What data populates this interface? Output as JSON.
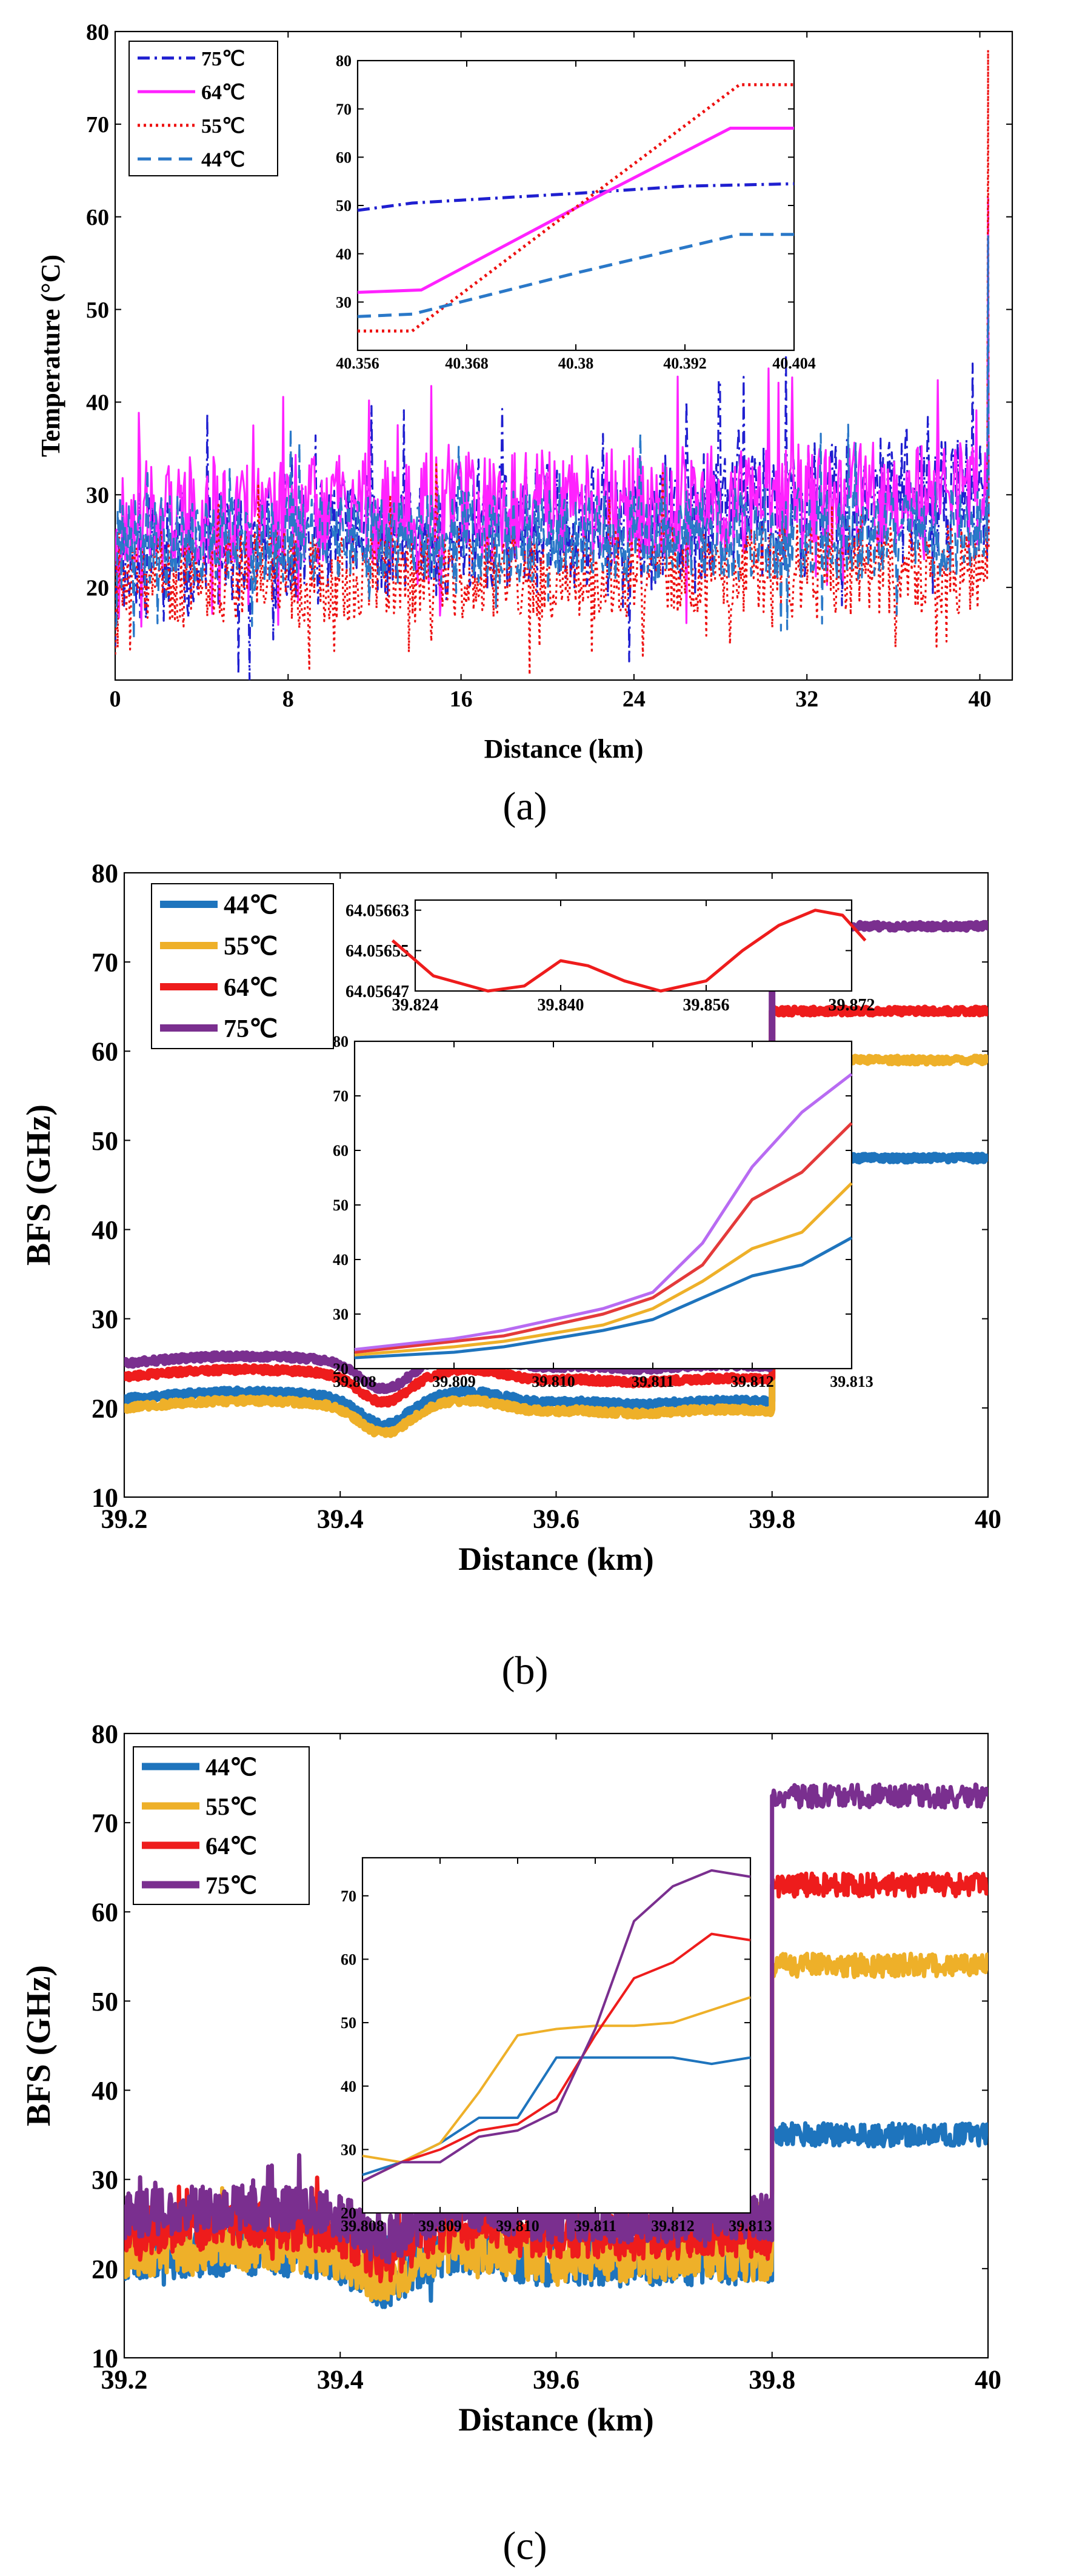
{
  "figure": {
    "panel_labels": [
      "(a)",
      "(b)",
      "(c)"
    ]
  },
  "chart_data": [
    {
      "type": "line",
      "panel": "a",
      "title": "",
      "xlabel": "Distance (km)",
      "ylabel": "Temperature (°C)",
      "xlim": [
        0,
        41.5
      ],
      "ylim": [
        10,
        80
      ],
      "xticks": [
        0,
        8,
        16,
        24,
        32,
        40
      ],
      "yticks": [
        20,
        30,
        40,
        50,
        60,
        70,
        80
      ],
      "legend_location": "top-left",
      "series": [
        {
          "name": "75℃",
          "color": "#1f1fd0",
          "dash": "dashdot",
          "base": 23,
          "amp": 7,
          "trend": 7,
          "seed": 11,
          "spike": 62
        },
        {
          "name": "64℃",
          "color": "#ff22ff",
          "dash": "solid",
          "base": 28,
          "amp": 6,
          "trend": 2,
          "seed": 23,
          "spike": 62
        },
        {
          "name": "55℃",
          "color": "#ee1111",
          "dash": "dotted",
          "base": 21,
          "amp": 5,
          "trend": 1,
          "seed": 37,
          "spike": 78
        },
        {
          "name": "44℃",
          "color": "#2a78c8",
          "dash": "dashed",
          "base": 25,
          "amp": 5,
          "trend": 1,
          "seed": 41,
          "spike": 58
        }
      ],
      "inset": {
        "xlim": [
          40.356,
          40.404
        ],
        "ylim": [
          20,
          80
        ],
        "xticks": [
          "40.356",
          "40.368",
          "40.38",
          "40.392",
          "40.404"
        ],
        "yticks": [
          30,
          40,
          50,
          60,
          70,
          80
        ],
        "series": [
          {
            "name": "75℃",
            "x": [
              40.356,
              40.362,
              40.38,
              40.392,
              40.404
            ],
            "y": [
              49,
              50.5,
              52.5,
              54,
              54.5
            ]
          },
          {
            "name": "64℃",
            "x": [
              40.356,
              40.363,
              40.381,
              40.397,
              40.404
            ],
            "y": [
              32,
              32.5,
              50.5,
              66,
              66
            ]
          },
          {
            "name": "55℃",
            "x": [
              40.356,
              40.362,
              40.381,
              40.398,
              40.404
            ],
            "y": [
              24,
              24,
              51,
              75,
              75
            ]
          },
          {
            "name": "44℃",
            "x": [
              40.356,
              40.362,
              40.38,
              40.398,
              40.404
            ],
            "y": [
              27,
              27.5,
              36,
              44,
              44
            ]
          }
        ]
      }
    },
    {
      "type": "line",
      "panel": "b",
      "title": "",
      "xlabel": "Distance (km)",
      "ylabel": "BFS (GHz)",
      "xlim": [
        39.2,
        40
      ],
      "ylim": [
        10,
        80
      ],
      "xticks": [
        39.2,
        39.4,
        39.6,
        39.8,
        40
      ],
      "yticks": [
        10,
        20,
        30,
        40,
        50,
        60,
        70,
        80
      ],
      "legend_location": "top-left",
      "series": [
        {
          "name": "44℃",
          "color": "#1e74bd",
          "offset": 0,
          "plateau": 48
        },
        {
          "name": "55℃",
          "color": "#eeb029",
          "offset": -1,
          "plateau": 59
        },
        {
          "name": "64℃",
          "color": "#ee1c1c",
          "offset": 2.5,
          "plateau": 64.5
        },
        {
          "name": "75℃",
          "color": "#7a2f8f",
          "offset": 4,
          "plateau": 74
        }
      ],
      "inset_top": {
        "xlim": [
          39.824,
          39.872
        ],
        "ylim": [
          64.05647,
          64.05665
        ],
        "xticks": [
          "39.824",
          "39.840",
          "39.856",
          "39.872"
        ],
        "yticks": [
          "64.05647",
          "64.05655",
          "64.05663"
        ],
        "x": [
          39.8215,
          39.826,
          39.832,
          39.836,
          39.84,
          39.843,
          39.847,
          39.851,
          39.856,
          39.86,
          39.864,
          39.868,
          39.871,
          39.8735
        ],
        "y": [
          64.05657,
          64.0565,
          64.05647,
          64.05648,
          64.05653,
          64.05652,
          64.05649,
          64.05647,
          64.05649,
          64.05655,
          64.0566,
          64.05663,
          64.05662,
          64.05657
        ]
      },
      "inset_bottom": {
        "xlim": [
          39.808,
          39.813
        ],
        "ylim": [
          20,
          80
        ],
        "xticks": [
          "39.808",
          "39.809",
          "39.810",
          "39.811",
          "39.812",
          "39.813"
        ],
        "yticks": [
          20,
          30,
          40,
          50,
          60,
          70,
          80
        ],
        "x": [
          39.808,
          39.809,
          39.8095,
          39.81,
          39.8105,
          39.811,
          39.8115,
          39.812,
          39.8125,
          39.813
        ],
        "series": [
          {
            "name": "44℃",
            "y": [
              22,
              23,
              24,
              25.5,
              27,
              29,
              33,
              37,
              39,
              44
            ]
          },
          {
            "name": "55℃",
            "y": [
              22.5,
              24,
              25,
              26.5,
              28,
              31,
              36,
              42,
              45,
              54
            ]
          },
          {
            "name": "64℃",
            "y": [
              23,
              25,
              26,
              28,
              30,
              33,
              39,
              51,
              56,
              65
            ]
          },
          {
            "name": "75℃",
            "y": [
              23.5,
              25.5,
              27,
              29,
              31,
              34,
              43,
              57,
              67,
              74
            ]
          }
        ]
      }
    },
    {
      "type": "line",
      "panel": "c",
      "title": "",
      "xlabel": "Distance (km)",
      "ylabel": "BFS (GHz)",
      "xlim": [
        39.2,
        40
      ],
      "ylim": [
        10,
        80
      ],
      "xticks": [
        39.2,
        39.4,
        39.6,
        39.8,
        40
      ],
      "yticks": [
        10,
        20,
        30,
        40,
        50,
        60,
        70,
        80
      ],
      "legend_location": "top-left",
      "series": [
        {
          "name": "44℃",
          "color": "#1e74bd",
          "offset": 0,
          "plateau": 35
        },
        {
          "name": "55℃",
          "color": "#eeb029",
          "offset": 0.5,
          "plateau": 54
        },
        {
          "name": "64℃",
          "color": "#ee1c1c",
          "offset": 3,
          "plateau": 63
        },
        {
          "name": "75℃",
          "color": "#7a2f8f",
          "offset": 5,
          "plateau": 73
        }
      ],
      "inset": {
        "xlim": [
          39.808,
          39.813
        ],
        "ylim": [
          20,
          76
        ],
        "xticks": [
          "39.808",
          "39.809",
          "39.810",
          "39.811",
          "39.812",
          "39.813"
        ],
        "yticks": [
          20,
          30,
          40,
          50,
          60,
          70
        ],
        "x": [
          39.808,
          39.8085,
          39.809,
          39.8095,
          39.81,
          39.8105,
          39.811,
          39.8115,
          39.812,
          39.8125,
          39.813
        ],
        "series": [
          {
            "name": "44℃",
            "y": [
              26,
              28,
              31,
              35,
              35,
              44.5,
              44.5,
              44.5,
              44.5,
              43.5,
              44.5
            ]
          },
          {
            "name": "55℃",
            "y": [
              29,
              28,
              31,
              39,
              48,
              49,
              49.5,
              49.5,
              50,
              52,
              54
            ]
          },
          {
            "name": "64℃",
            "y": [
              25,
              28,
              30,
              33,
              34,
              38,
              48,
              57,
              59.5,
              64,
              63
            ]
          },
          {
            "name": "75℃",
            "y": [
              25,
              28,
              28,
              32,
              33,
              36,
              49,
              66,
              71.5,
              74,
              73
            ]
          }
        ]
      }
    }
  ]
}
